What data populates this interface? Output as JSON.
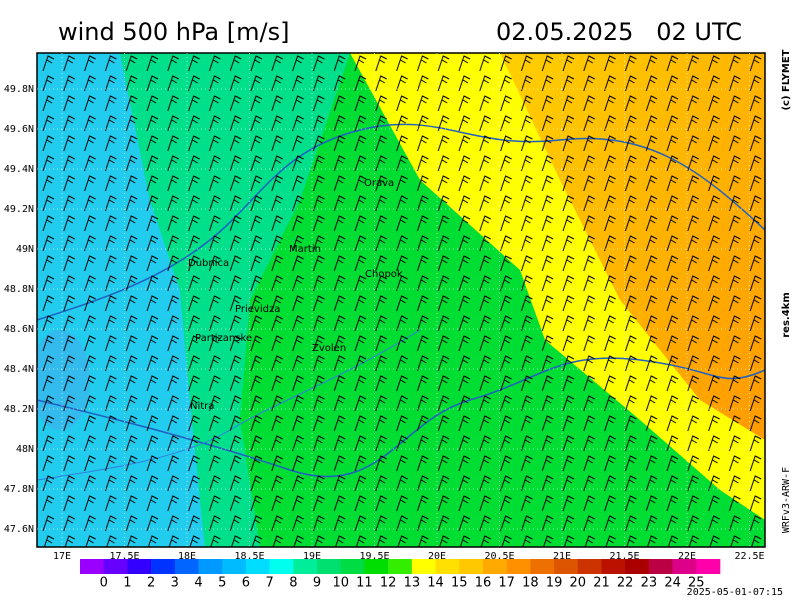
{
  "map": {
    "title": "wind 500 hPa [m/s]",
    "valid_time": "02.05.2025   02 UTC",
    "credit": "(c) FLYMET",
    "resolution": "res.4km",
    "model": "WRFv3-ARW-F",
    "timestamp": "2025-05-01-07:15",
    "lon_ticks": [
      {
        "value": 17,
        "label": "17E"
      },
      {
        "value": 17.5,
        "label": "17.5E"
      },
      {
        "value": 18,
        "label": "18E"
      },
      {
        "value": 18.5,
        "label": "18.5E"
      },
      {
        "value": 19,
        "label": "19E"
      },
      {
        "value": 19.5,
        "label": "19.5E"
      },
      {
        "value": 20,
        "label": "20E"
      },
      {
        "value": 20.5,
        "label": "20.5E"
      },
      {
        "value": 21,
        "label": "21E"
      },
      {
        "value": 21.5,
        "label": "21.5E"
      },
      {
        "value": 22,
        "label": "22E"
      },
      {
        "value": 22.5,
        "label": "22.5E"
      }
    ],
    "lat_ticks": [
      {
        "value": 49.8,
        "label": "49.8N"
      },
      {
        "value": 49.6,
        "label": "49.6N"
      },
      {
        "value": 49.4,
        "label": "49.4N"
      },
      {
        "value": 49.2,
        "label": "49.2N"
      },
      {
        "value": 49,
        "label": "49N"
      },
      {
        "value": 48.8,
        "label": "48.8N"
      },
      {
        "value": 48.6,
        "label": "48.6N"
      },
      {
        "value": 48.4,
        "label": "48.4N"
      },
      {
        "value": 48.2,
        "label": "48.2N"
      },
      {
        "value": 48,
        "label": "48N"
      },
      {
        "value": 47.8,
        "label": "47.8N"
      },
      {
        "value": 47.6,
        "label": "47.6N"
      }
    ],
    "cities": [
      "Orava",
      "Martin",
      "Dubnica",
      "Chopok",
      "Prievidza",
      "Partizanske",
      "Zvolen",
      "Nitra"
    ],
    "colorbar": {
      "labels": [
        0,
        1,
        2,
        3,
        4,
        5,
        6,
        7,
        8,
        9,
        10,
        11,
        12,
        13,
        14,
        15,
        16,
        17,
        18,
        19,
        20,
        21,
        22,
        23,
        24,
        25
      ],
      "colors": [
        "#9900ff",
        "#6600ff",
        "#3300ff",
        "#0033ff",
        "#0066ff",
        "#0099ff",
        "#00bbff",
        "#00ddff",
        "#00ffee",
        "#00ee99",
        "#00e070",
        "#00dd44",
        "#00dd00",
        "#33ee00",
        "#ffff00",
        "#ffe000",
        "#ffc800",
        "#ffaa00",
        "#ff9000",
        "#ee7000",
        "#dd5500",
        "#cc3300",
        "#bb1100",
        "#aa0000",
        "#bb0044",
        "#dd0088",
        "#ff00aa"
      ]
    }
  }
}
